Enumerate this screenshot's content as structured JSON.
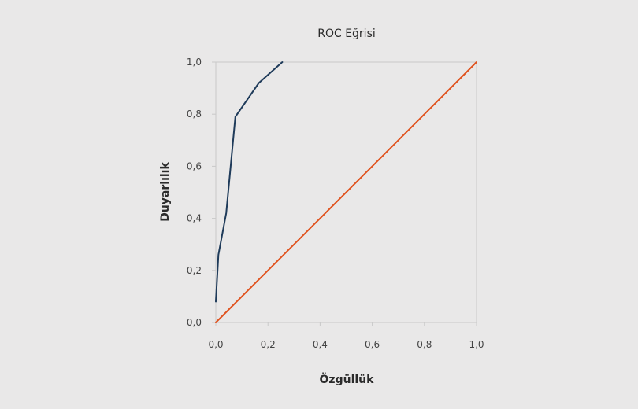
{
  "chart_data": {
    "type": "line",
    "title": "ROC Eğrisi",
    "xlabel": "Özgüllük",
    "ylabel": "Duyarlılık",
    "xlim": [
      0,
      1
    ],
    "ylim": [
      0,
      1
    ],
    "x_ticks": [
      "0,0",
      "0,2",
      "0,4",
      "0,6",
      "0,8",
      "1,0"
    ],
    "y_ticks": [
      "0,0",
      "0,2",
      "0,4",
      "0,6",
      "0,8",
      "1,0"
    ],
    "grid": false,
    "series": [
      {
        "color": "#1f3b5a",
        "x": [
          0.0,
          0.01,
          0.04,
          0.075,
          0.165,
          0.255
        ],
        "y": [
          0.08,
          0.26,
          0.42,
          0.79,
          0.92,
          1.0
        ]
      },
      {
        "color": "#e0521e",
        "x": [
          0.0,
          1.0
        ],
        "y": [
          0.0,
          1.0
        ]
      }
    ]
  }
}
